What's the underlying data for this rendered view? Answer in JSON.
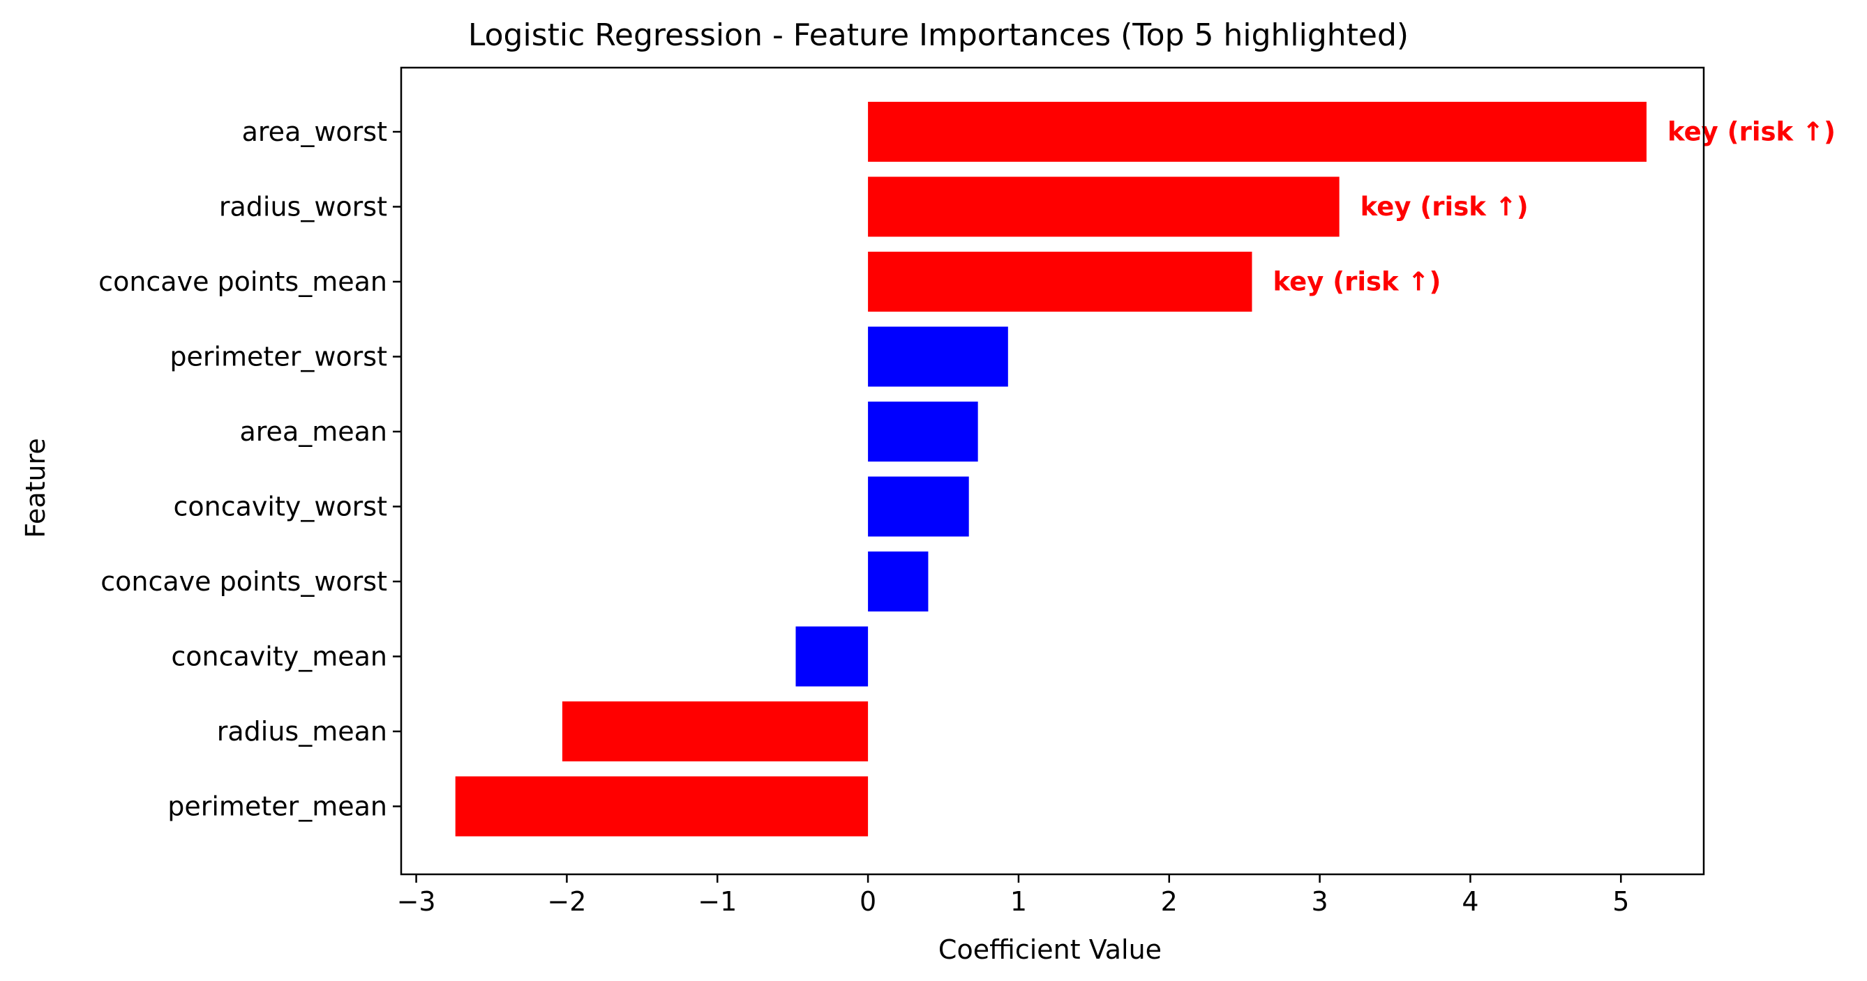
{
  "chart_data": {
    "type": "bar",
    "orientation": "horizontal",
    "title": "Logistic Regression - Feature Importances (Top 5 highlighted)",
    "xlabel": "Coefficient Value",
    "ylabel": "Feature",
    "xlim": [
      -3.1,
      5.55
    ],
    "xticks": [
      -3,
      -2,
      -1,
      0,
      1,
      2,
      3,
      4,
      5
    ],
    "xtick_labels": [
      "−3",
      "−2",
      "−1",
      "0",
      "1",
      "2",
      "3",
      "4",
      "5"
    ],
    "grid": false,
    "categories": [
      "area_worst",
      "radius_worst",
      "concave points_mean",
      "perimeter_worst",
      "area_mean",
      "concavity_worst",
      "concave points_worst",
      "concavity_mean",
      "radius_mean",
      "perimeter_mean"
    ],
    "values": [
      5.17,
      3.13,
      2.55,
      0.93,
      0.73,
      0.67,
      0.4,
      -0.48,
      -2.03,
      -2.74
    ],
    "highlighted": [
      true,
      true,
      true,
      false,
      false,
      false,
      false,
      false,
      true,
      true
    ],
    "colors": {
      "highlight": "#ff0000",
      "normal": "#0000ff",
      "annotation": "#ff0000",
      "axis": "#000000",
      "background": "#ffffff"
    },
    "annotations": [
      {
        "category": "area_worst",
        "text": "key (risk ↑)"
      },
      {
        "category": "radius_worst",
        "text": "key (risk ↑)"
      },
      {
        "category": "concave points_mean",
        "text": "key (risk ↑)"
      }
    ]
  }
}
